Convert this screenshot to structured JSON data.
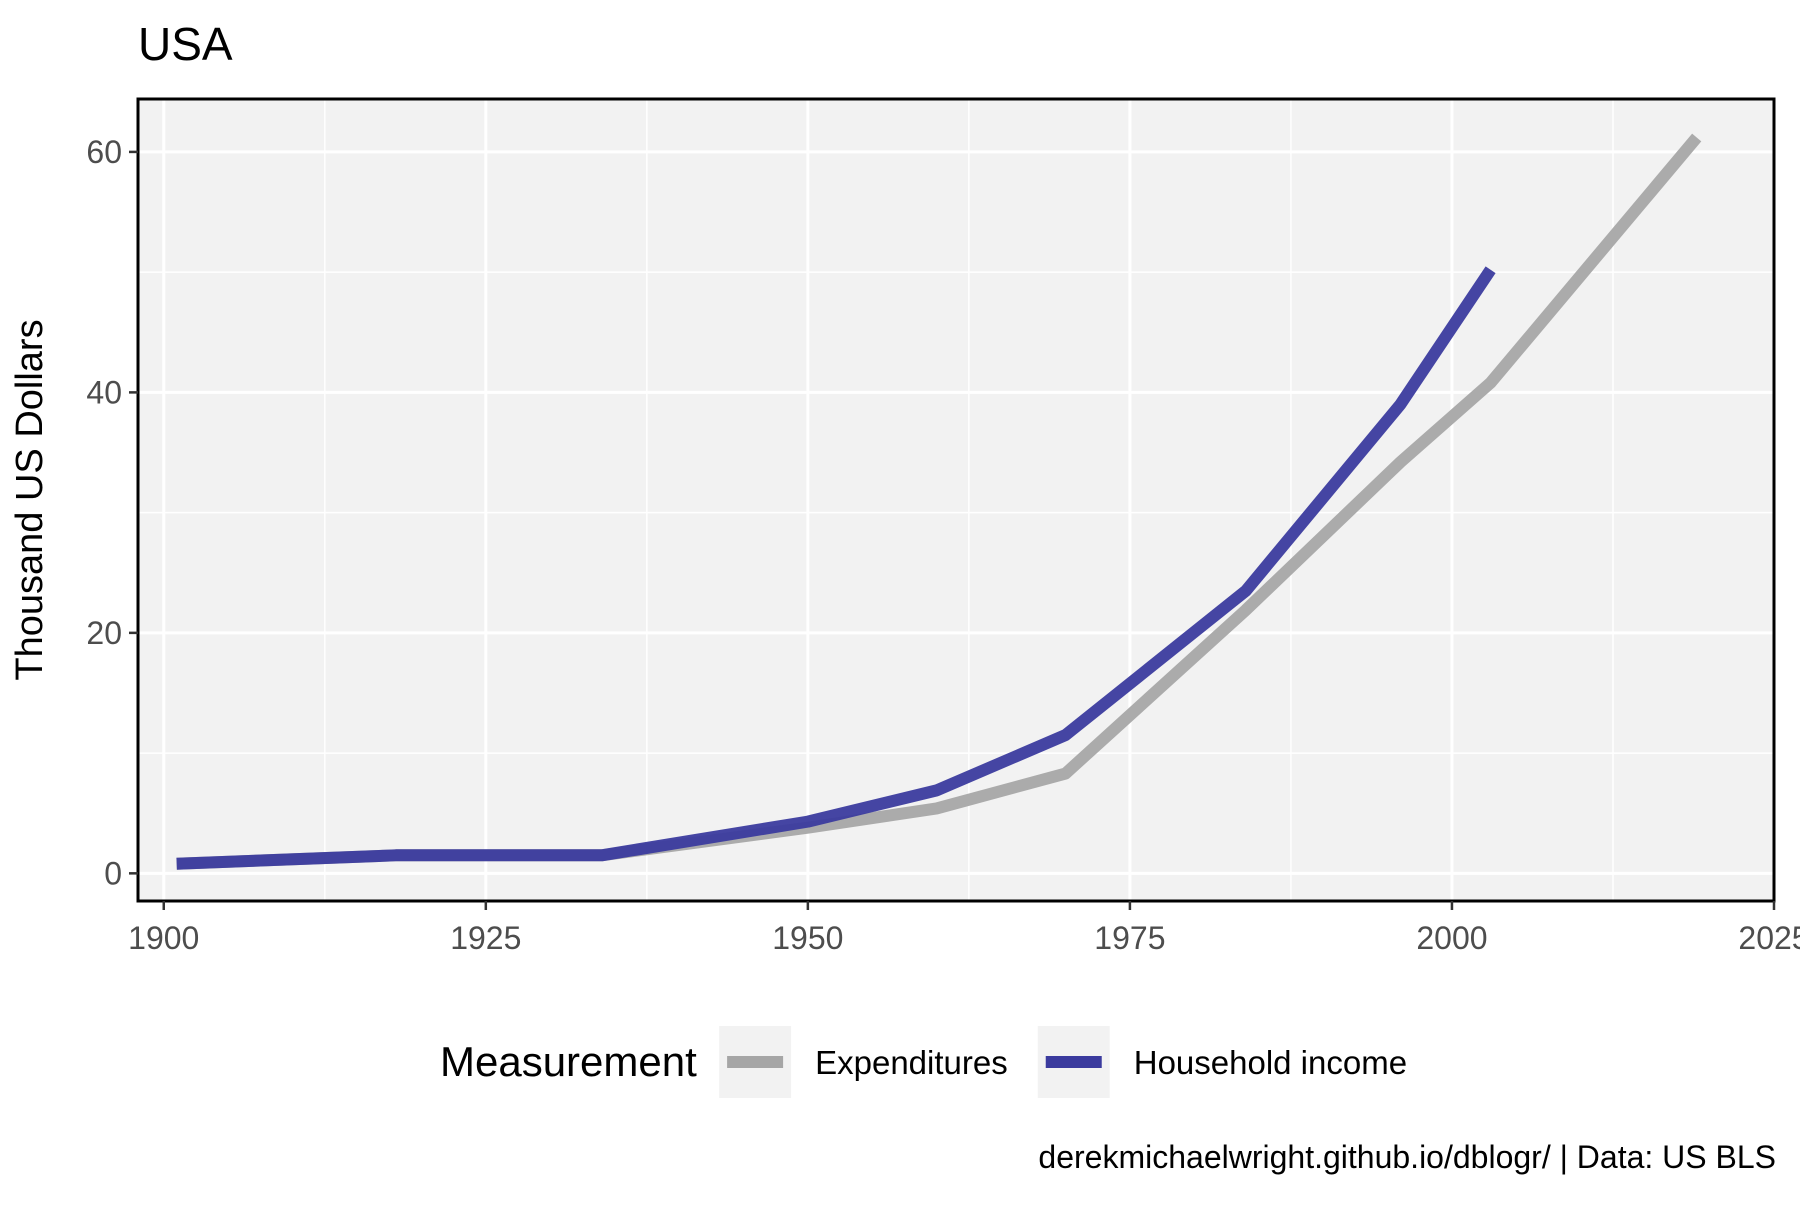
{
  "chart_data": {
    "type": "line",
    "title": "USA",
    "xlabel": "",
    "ylabel": "Thousand US Dollars",
    "xlim": [
      1898,
      2025
    ],
    "ylim": [
      -2.3,
      64.4
    ],
    "x_ticks": [
      1900,
      1925,
      1950,
      1975,
      2000,
      2025
    ],
    "y_ticks": [
      0,
      20,
      40,
      60
    ],
    "x_minor_ticks": [
      1912.5,
      1937.5,
      1962.5,
      1987.5,
      2012.5
    ],
    "y_minor_ticks": [
      10,
      30,
      50
    ],
    "grid": true,
    "legend": {
      "title": "Measurement",
      "position": "bottom"
    },
    "caption": "derekmichaelwright.github.io/dblogr/ | Data: US BLS",
    "series": [
      {
        "name": "Expenditures",
        "color": "#a6a6a6",
        "points": [
          [
            1901,
            0.8
          ],
          [
            1918,
            1.5
          ],
          [
            1934,
            1.5
          ],
          [
            1950,
            3.8
          ],
          [
            1960,
            5.4
          ],
          [
            1970,
            8.3
          ],
          [
            1984,
            21.9
          ],
          [
            1996,
            34.2
          ],
          [
            2003,
            40.8
          ],
          [
            2019,
            61.2
          ]
        ]
      },
      {
        "name": "Household income",
        "color": "#3b3b9e",
        "points": [
          [
            1901,
            0.8
          ],
          [
            1918,
            1.5
          ],
          [
            1934,
            1.5
          ],
          [
            1950,
            4.3
          ],
          [
            1960,
            6.9
          ],
          [
            1970,
            11.5
          ],
          [
            1984,
            23.5
          ],
          [
            1996,
            39.0
          ],
          [
            2003,
            50.2
          ]
        ]
      }
    ]
  }
}
